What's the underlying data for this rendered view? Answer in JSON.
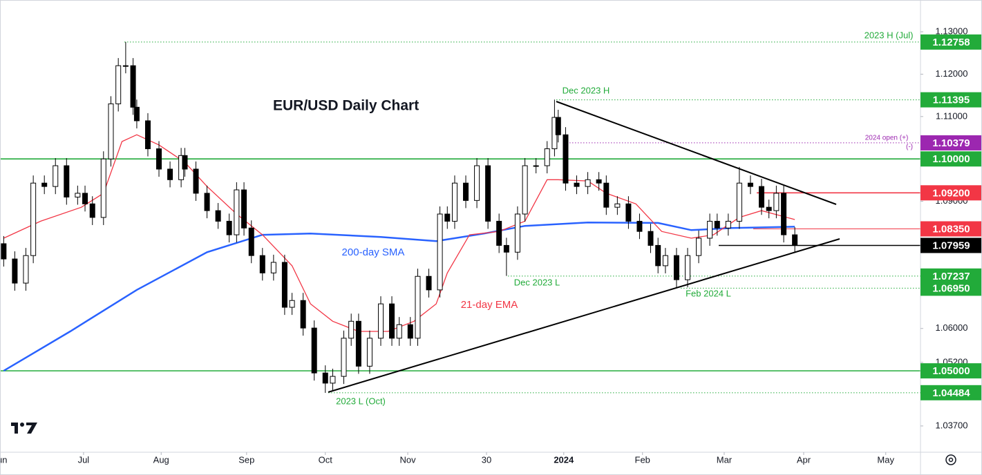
{
  "chart_data": {
    "type": "candlestick",
    "title": "EUR/USD Daily Chart",
    "xlim": [
      -1,
      248
    ],
    "ylim": [
      1.0308,
      1.1375
    ],
    "x": [
      0,
      3,
      6,
      8,
      11,
      14,
      17,
      20,
      22,
      24,
      27,
      29,
      31,
      33,
      35,
      36,
      39,
      42,
      45,
      48,
      49,
      52,
      55,
      58,
      61,
      63,
      65,
      67,
      70,
      73,
      76,
      78,
      81,
      84,
      87,
      89,
      92,
      94,
      96,
      99,
      102,
      105,
      107,
      110,
      112,
      115,
      118,
      120,
      122,
      125,
      128,
      131,
      134,
      136,
      139,
      141,
      144,
      147,
      149,
      150,
      152,
      155,
      158,
      161,
      163,
      166,
      169,
      172,
      175,
      177,
      179,
      182,
      185,
      188,
      191,
      193,
      196,
      199,
      202,
      205,
      207,
      209,
      211,
      214
    ],
    "open": [
      1.08,
      1.0764,
      1.0707,
      1.0772,
      1.0943,
      1.0935,
      1.0984,
      1.091,
      1.0919,
      1.0894,
      1.0862,
      1.1,
      1.113,
      1.122,
      1.122,
      1.1122,
      1.109,
      1.1024,
      1.0976,
      1.0951,
      1.1008,
      1.0976,
      1.0919,
      1.0878,
      1.0853,
      1.0821,
      1.0927,
      1.0837,
      1.0772,
      1.0731,
      1.0756,
      1.065,
      1.0666,
      1.0601,
      1.0495,
      1.0471,
      1.0487,
      1.0577,
      1.0617,
      1.0511,
      1.0577,
      1.0658,
      1.0577,
      1.0609,
      1.0577,
      1.0723,
      1.0691,
      1.087,
      1.0853,
      1.0943,
      1.0902,
      1.0984,
      1.0853,
      1.0796,
      1.078,
      1.087,
      1.0984,
      1.0984,
      1.1024,
      1.1098,
      1.1057,
      1.0943,
      1.0935,
      1.0951,
      1.0943,
      1.0886,
      1.0894,
      1.0853,
      1.0829,
      1.0796,
      1.0748,
      1.0772,
      1.0715,
      1.0772,
      1.0813,
      1.0853,
      1.0837,
      1.0853,
      1.0943,
      1.0935,
      1.0886,
      1.0878,
      1.0919,
      1.0821
    ],
    "high": [
      1.0818,
      1.0782,
      1.079,
      1.0961,
      1.0961,
      1.1002,
      1.1002,
      1.0937,
      1.0937,
      1.0912,
      1.1018,
      1.1148,
      1.1238,
      1.1276,
      1.1238,
      1.114,
      1.1108,
      1.1042,
      1.0994,
      1.1026,
      1.1026,
      1.0994,
      1.0937,
      1.0896,
      1.0871,
      1.0945,
      1.0945,
      1.0855,
      1.079,
      1.0774,
      1.0774,
      1.0684,
      1.0684,
      1.0619,
      1.0513,
      1.0505,
      1.0595,
      1.0635,
      1.0635,
      1.0595,
      1.0676,
      1.0676,
      1.0627,
      1.0627,
      1.0741,
      1.0741,
      1.0888,
      1.0888,
      1.0961,
      1.0961,
      1.1002,
      1.1002,
      1.0871,
      1.0814,
      1.0888,
      1.1002,
      1.1002,
      1.1042,
      1.114,
      1.1116,
      1.1075,
      1.0961,
      1.0969,
      1.0969,
      1.0961,
      1.0912,
      1.0912,
      1.0871,
      1.0847,
      1.0814,
      1.079,
      1.079,
      1.079,
      1.0831,
      1.0871,
      1.0871,
      1.0871,
      1.0981,
      1.0961,
      1.0953,
      1.0904,
      1.0937,
      1.0937,
      1.0839
    ],
    "low": [
      1.0746,
      1.0689,
      1.0689,
      1.0754,
      1.0917,
      1.0917,
      1.0892,
      1.0892,
      1.0876,
      1.0844,
      1.0844,
      1.0982,
      1.1112,
      1.1202,
      1.1104,
      1.1072,
      1.1006,
      1.0958,
      1.0933,
      1.0933,
      1.0958,
      1.0901,
      1.086,
      1.0835,
      1.0803,
      1.0803,
      1.0819,
      1.0754,
      1.0713,
      1.0713,
      1.0632,
      1.0632,
      1.0583,
      1.0477,
      1.0448,
      1.0453,
      1.0469,
      1.0559,
      1.0493,
      1.0493,
      1.0559,
      1.0559,
      1.0559,
      1.0559,
      1.0559,
      1.0673,
      1.0673,
      1.0835,
      1.0835,
      1.0884,
      1.0884,
      1.0835,
      1.0778,
      1.0724,
      1.0762,
      1.0852,
      1.0966,
      1.0966,
      1.1006,
      1.1039,
      1.0925,
      1.0917,
      1.0917,
      1.0925,
      1.0868,
      1.0868,
      1.0835,
      1.0811,
      1.0778,
      1.073,
      1.073,
      1.0695,
      1.0697,
      1.0754,
      1.0795,
      1.0819,
      1.0819,
      1.0835,
      1.0917,
      1.0868,
      1.086,
      1.086,
      1.0803,
      1.0778
    ],
    "close": [
      1.0764,
      1.0707,
      1.0772,
      1.0943,
      1.0935,
      1.0984,
      1.091,
      1.0919,
      1.0894,
      1.0862,
      1.1,
      1.113,
      1.122,
      1.122,
      1.1122,
      1.109,
      1.1024,
      1.0976,
      1.0951,
      1.1008,
      1.0976,
      1.0919,
      1.0878,
      1.0853,
      1.0821,
      1.0927,
      1.0837,
      1.0772,
      1.0731,
      1.0756,
      1.065,
      1.0666,
      1.0601,
      1.0495,
      1.0471,
      1.0487,
      1.0577,
      1.0617,
      1.0511,
      1.0577,
      1.0658,
      1.0577,
      1.0609,
      1.0577,
      1.0723,
      1.0691,
      1.087,
      1.0853,
      1.0943,
      1.0902,
      1.0984,
      1.0853,
      1.0796,
      1.078,
      1.087,
      1.0984,
      1.0984,
      1.1024,
      1.1098,
      1.1057,
      1.0943,
      1.0935,
      1.0951,
      1.0943,
      1.0886,
      1.0894,
      1.0853,
      1.0829,
      1.0796,
      1.0748,
      1.0772,
      1.0715,
      1.0772,
      1.0813,
      1.0853,
      1.0837,
      1.0853,
      1.0943,
      1.0935,
      1.0886,
      1.0878,
      1.0919,
      1.0821,
      1.0796
    ],
    "up_color": "#ffffff",
    "down_color": "#000000",
    "lines": [
      {
        "name": "200-day SMA",
        "color": "#2962ff",
        "x": [
          0,
          18,
          36,
          55,
          70,
          83,
          102,
          117,
          130,
          141,
          158,
          177,
          186,
          197,
          214
        ],
        "values": [
          1.05,
          1.0593,
          1.0691,
          1.078,
          1.0821,
          1.0824,
          1.0816,
          1.0806,
          1.0824,
          1.0842,
          1.085,
          1.0849,
          1.0832,
          1.0837,
          1.084
        ]
      },
      {
        "name": "21-day EMA",
        "color": "#f23645",
        "x": [
          0,
          10,
          21,
          27,
          32,
          36,
          42,
          49,
          55,
          63,
          70,
          78,
          83,
          89,
          96,
          104,
          111,
          117,
          120,
          126,
          134,
          141,
          147,
          150,
          158,
          163,
          171,
          178,
          186,
          192,
          199,
          205,
          214
        ],
        "values": [
          1.0813,
          1.0853,
          1.0886,
          1.0919,
          1.1041,
          1.1057,
          1.1033,
          1.0992,
          1.0935,
          1.087,
          1.0821,
          1.0748,
          1.0658,
          1.0617,
          1.0593,
          1.0593,
          1.0617,
          1.0658,
          1.0731,
          1.0821,
          1.0829,
          1.0853,
          1.0951,
          1.0951,
          1.0948,
          1.0919,
          1.0894,
          1.0829,
          1.0813,
          1.0821,
          1.0862,
          1.0878,
          1.0857
        ]
      }
    ],
    "levels": [
      {
        "value": 1.12758,
        "label": "1.12758",
        "color": "#22ab3a",
        "style": "dotted"
      },
      {
        "value": 1.11395,
        "label": "1.11395",
        "color": "#22ab3a",
        "style": "dotted"
      },
      {
        "value": 1.10379,
        "label": "1.10379",
        "color": "#9c27b0",
        "style": "dotted"
      },
      {
        "value": 1.1,
        "label": "1.10000",
        "color": "#22ab3a",
        "style": "solid"
      },
      {
        "value": 1.092,
        "label": "1.09200",
        "color": "#f23645",
        "style": "solid"
      },
      {
        "value": 1.0835,
        "label": "1.08350",
        "color": "#f23645",
        "style": "thin"
      },
      {
        "value": 1.07959,
        "label": "1.07959",
        "color": "#000000",
        "style": "solid"
      },
      {
        "value": 1.07237,
        "label": "1.07237",
        "color": "#22ab3a",
        "style": "dotted"
      },
      {
        "value": 1.0695,
        "label": "1.06950",
        "color": "#22ab3a",
        "style": "dotted"
      },
      {
        "value": 1.05,
        "label": "1.05000",
        "color": "#22ab3a",
        "style": "solid"
      },
      {
        "value": 1.04484,
        "label": "1.04484",
        "color": "#22ab3a",
        "style": "dotted"
      }
    ],
    "yticks": [
      {
        "value": 1.13,
        "label": "1.13000"
      },
      {
        "value": 1.12,
        "label": "1.12000"
      },
      {
        "value": 1.11,
        "label": "1.11000"
      },
      {
        "value": 1.09,
        "label": "1.09000"
      },
      {
        "value": 1.06,
        "label": "1.06000"
      },
      {
        "value": 1.052,
        "label": "1.05200"
      },
      {
        "value": 1.037,
        "label": "1.03700"
      }
    ],
    "xticks": [
      {
        "value": -1,
        "label": "Jun"
      },
      {
        "value": 21.6,
        "label": "Jul"
      },
      {
        "value": 42.6,
        "label": "Aug"
      },
      {
        "value": 65.7,
        "label": "Sep"
      },
      {
        "value": 87,
        "label": "Oct"
      },
      {
        "value": 109.3,
        "label": "Nov"
      },
      {
        "value": 130.6,
        "label": "30"
      },
      {
        "value": 151.5,
        "label": "2024"
      },
      {
        "value": 172.8,
        "label": "Feb"
      },
      {
        "value": 194.9,
        "label": "Mar"
      },
      {
        "value": 216.4,
        "label": "Apr"
      },
      {
        "value": 238.6,
        "label": "May"
      }
    ],
    "annotations": [
      "2023 H (Jul)",
      "Dec 2023 H",
      "2024 open (+)",
      "(-)",
      "Dec 2023 L",
      "Feb 2024 L",
      "2023 L (Oct)"
    ]
  }
}
